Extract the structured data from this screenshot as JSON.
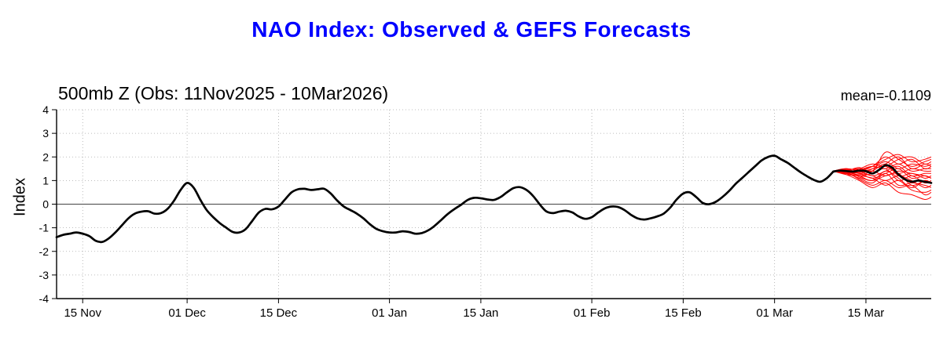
{
  "page": {
    "title": "NAO Index: Observed & GEFS Forecasts"
  },
  "chart": {
    "subtitle": "500mb Z (Obs: 11Nov2025 - 10Mar2026)",
    "mean_label": "mean=-0.1109",
    "ylabel": "Index"
  },
  "chart_data": {
    "type": "line",
    "title": "NAO Index: Observed & GEFS Forecasts",
    "subtitle": "500mb Z (Obs: 11Nov2025 - 10Mar2026)",
    "mean_annotation": "mean=-0.1109",
    "ylabel": "Index",
    "ylim": [
      -4,
      4
    ],
    "xlim": [
      0,
      134
    ],
    "yticks": [
      -4,
      -3,
      -2,
      -1,
      0,
      1,
      2,
      3,
      4
    ],
    "xticks": [
      {
        "day": 4,
        "label": "15 Nov"
      },
      {
        "day": 20,
        "label": "01 Dec"
      },
      {
        "day": 34,
        "label": "15 Dec"
      },
      {
        "day": 51,
        "label": "01 Jan"
      },
      {
        "day": 65,
        "label": "15 Jan"
      },
      {
        "day": 82,
        "label": "01 Feb"
      },
      {
        "day": 96,
        "label": "15 Feb"
      },
      {
        "day": 110,
        "label": "01 Mar"
      },
      {
        "day": 124,
        "label": "15 Mar"
      }
    ],
    "colors": {
      "observed": "#000000",
      "ensemble": "#ff0000",
      "title": "#0000ff"
    },
    "observed": {
      "name": "Observed NAO index (500mb Z), daily from 11Nov2025",
      "start_day": 0,
      "values": [
        -1.4,
        -1.3,
        -1.25,
        -1.2,
        -1.25,
        -1.35,
        -1.55,
        -1.6,
        -1.45,
        -1.2,
        -0.9,
        -0.6,
        -0.4,
        -0.32,
        -0.3,
        -0.4,
        -0.38,
        -0.2,
        0.15,
        0.6,
        0.9,
        0.7,
        0.2,
        -0.25,
        -0.55,
        -0.8,
        -1.0,
        -1.18,
        -1.2,
        -1.05,
        -0.7,
        -0.35,
        -0.2,
        -0.22,
        -0.1,
        0.2,
        0.5,
        0.63,
        0.65,
        0.6,
        0.63,
        0.65,
        0.45,
        0.15,
        -0.1,
        -0.25,
        -0.4,
        -0.6,
        -0.85,
        -1.05,
        -1.15,
        -1.2,
        -1.2,
        -1.15,
        -1.18,
        -1.25,
        -1.22,
        -1.1,
        -0.9,
        -0.65,
        -0.4,
        -0.2,
        -0.02,
        0.18,
        0.27,
        0.25,
        0.2,
        0.18,
        0.3,
        0.5,
        0.68,
        0.72,
        0.6,
        0.35,
        0.0,
        -0.3,
        -0.38,
        -0.32,
        -0.28,
        -0.35,
        -0.52,
        -0.62,
        -0.55,
        -0.35,
        -0.18,
        -0.1,
        -0.12,
        -0.25,
        -0.45,
        -0.6,
        -0.65,
        -0.6,
        -0.52,
        -0.4,
        -0.15,
        0.2,
        0.45,
        0.5,
        0.3,
        0.05,
        0.0,
        0.1,
        0.3,
        0.55,
        0.85,
        1.1,
        1.35,
        1.6,
        1.85,
        2.0,
        2.05,
        1.9,
        1.75,
        1.55,
        1.35,
        1.18,
        1.03,
        0.95,
        1.1,
        1.38
      ]
    },
    "forecast_mean": {
      "name": "GEFS forecast ensemble mean",
      "days": [
        119,
        120,
        121,
        122,
        123,
        124,
        125,
        126,
        127,
        128,
        129,
        130,
        131,
        132,
        133,
        134
      ],
      "values": [
        1.38,
        1.42,
        1.4,
        1.38,
        1.42,
        1.4,
        1.3,
        1.45,
        1.65,
        1.55,
        1.25,
        1.05,
        0.95,
        1.0,
        0.95,
        0.9
      ]
    },
    "ensemble": {
      "name": "GEFS ensemble members",
      "days": [
        119,
        121,
        123,
        125,
        127,
        129,
        131,
        133,
        134
      ],
      "members": [
        [
          1.4,
          1.5,
          1.45,
          1.6,
          1.9,
          2.1,
          1.8,
          1.9,
          2.0
        ],
        [
          1.4,
          1.45,
          1.5,
          1.4,
          2.2,
          1.9,
          1.6,
          1.8,
          1.9
        ],
        [
          1.4,
          1.35,
          1.5,
          1.7,
          1.6,
          1.9,
          2.0,
          1.7,
          1.8
        ],
        [
          1.4,
          1.5,
          1.3,
          1.5,
          1.8,
          1.5,
          1.7,
          1.6,
          1.7
        ],
        [
          1.4,
          1.4,
          1.55,
          1.3,
          1.7,
          2.0,
          1.5,
          1.7,
          1.6
        ],
        [
          1.4,
          1.3,
          1.45,
          1.6,
          1.5,
          1.7,
          1.4,
          1.5,
          1.5
        ],
        [
          1.4,
          1.45,
          1.35,
          1.5,
          1.6,
          1.3,
          1.5,
          1.4,
          1.4
        ],
        [
          1.4,
          1.5,
          1.4,
          1.2,
          1.4,
          1.6,
          1.2,
          1.3,
          1.3
        ],
        [
          1.4,
          1.35,
          1.25,
          1.4,
          1.7,
          1.2,
          1.3,
          1.1,
          1.2
        ],
        [
          1.4,
          1.4,
          1.3,
          1.1,
          1.3,
          1.5,
          1.1,
          1.2,
          1.1
        ],
        [
          1.4,
          1.3,
          1.2,
          1.3,
          1.5,
          1.0,
          1.2,
          0.9,
          1.0
        ],
        [
          1.4,
          1.45,
          1.15,
          1.0,
          1.2,
          1.3,
          0.8,
          1.0,
          0.9
        ],
        [
          1.4,
          1.35,
          1.3,
          1.2,
          1.0,
          1.2,
          1.0,
          0.7,
          0.8
        ],
        [
          1.4,
          1.3,
          1.1,
          0.9,
          1.3,
          0.8,
          0.9,
          0.8,
          0.7
        ],
        [
          1.4,
          1.25,
          1.2,
          1.1,
          0.8,
          1.0,
          0.6,
          0.5,
          0.6
        ],
        [
          1.4,
          1.35,
          1.05,
          0.8,
          1.0,
          0.7,
          0.8,
          0.4,
          0.5
        ],
        [
          1.4,
          1.4,
          1.2,
          1.0,
          1.4,
          1.1,
          0.7,
          1.0,
          0.9
        ],
        [
          1.4,
          1.3,
          1.35,
          1.4,
          1.2,
          1.4,
          1.3,
          1.2,
          1.1
        ],
        [
          1.4,
          1.25,
          1.0,
          0.7,
          0.9,
          0.5,
          0.4,
          0.2,
          0.3
        ],
        [
          1.4,
          1.45,
          1.4,
          1.6,
          2.0,
          1.7,
          1.9,
          1.5,
          1.6
        ]
      ]
    }
  }
}
